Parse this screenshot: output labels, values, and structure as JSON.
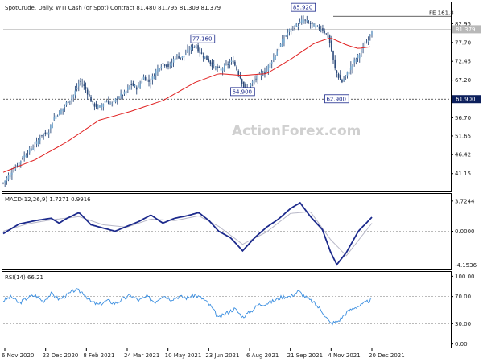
{
  "chart_data": [
    {
      "type": "candlestick",
      "header_text": "SpotCrude, Daily:  WTI Cash (or Spot) Contract  81.480 81.795 81.309 81.379",
      "watermark": "ActionForex.com",
      "x_ticks": [
        "6 Nov 2020",
        "22 Dec 2020",
        "8 Feb 2021",
        "24 Mar 2021",
        "10 May 2021",
        "23 Jun 2021",
        "6 Aug 2021",
        "21 Sep 2021",
        "4 Nov 2021",
        "20 Dec 2021"
      ],
      "y_ticks": [
        "82.95",
        "77.70",
        "72.45",
        "67.20",
        "61.95",
        "56.70",
        "51.65",
        "46.42",
        "41.15"
      ],
      "y_tick_values": [
        82.95,
        77.7,
        72.45,
        67.2,
        61.95,
        56.7,
        51.65,
        46.42,
        41.15
      ],
      "ylim": [
        36.6,
        88.2
      ],
      "close_points": [
        [
          0,
          38.5
        ],
        [
          8,
          41
        ],
        [
          16,
          43
        ],
        [
          24,
          45.5
        ],
        [
          32,
          47.5
        ],
        [
          40,
          49
        ],
        [
          48,
          52
        ],
        [
          56,
          52.5
        ],
        [
          64,
          57
        ],
        [
          72,
          58.5
        ],
        [
          80,
          61
        ],
        [
          88,
          63
        ],
        [
          96,
          67
        ],
        [
          104,
          64.5
        ],
        [
          112,
          60.5
        ],
        [
          120,
          59.5
        ],
        [
          128,
          61.5
        ],
        [
          136,
          60.5
        ],
        [
          144,
          62.5
        ],
        [
          152,
          63.5
        ],
        [
          160,
          66
        ],
        [
          168,
          65
        ],
        [
          176,
          68
        ],
        [
          184,
          66.5
        ],
        [
          192,
          70
        ],
        [
          200,
          72
        ],
        [
          208,
          71
        ],
        [
          216,
          74
        ],
        [
          224,
          73.5
        ],
        [
          232,
          75.5
        ],
        [
          240,
          77
        ],
        [
          248,
          74.5
        ],
        [
          256,
          73
        ],
        [
          264,
          71
        ],
        [
          272,
          70
        ],
        [
          280,
          71.5
        ],
        [
          288,
          72.5
        ],
        [
          296,
          68.5
        ],
        [
          304,
          64
        ],
        [
          312,
          66.5
        ],
        [
          320,
          68.5
        ],
        [
          328,
          69.5
        ],
        [
          336,
          72.5
        ],
        [
          344,
          75.5
        ],
        [
          352,
          79
        ],
        [
          360,
          81.5
        ],
        [
          368,
          82.5
        ],
        [
          376,
          84
        ],
        [
          384,
          83
        ],
        [
          392,
          82
        ],
        [
          400,
          81.5
        ],
        [
          408,
          79
        ],
        [
          416,
          70
        ],
        [
          424,
          66.5
        ],
        [
          432,
          69.5
        ],
        [
          440,
          72.5
        ],
        [
          448,
          75
        ],
        [
          456,
          78
        ],
        [
          462,
          81.379
        ]
      ],
      "ma_points": [
        [
          0,
          41.5
        ],
        [
          40,
          45
        ],
        [
          80,
          50
        ],
        [
          120,
          56
        ],
        [
          160,
          58.5
        ],
        [
          200,
          61.5
        ],
        [
          240,
          66.5
        ],
        [
          270,
          69
        ],
        [
          300,
          68.5
        ],
        [
          330,
          69
        ],
        [
          360,
          73
        ],
        [
          390,
          77.5
        ],
        [
          410,
          79
        ],
        [
          430,
          77
        ],
        [
          445,
          76
        ],
        [
          460,
          76.5
        ]
      ],
      "last_price": {
        "value": 81.379,
        "label": "81.379"
      },
      "levels": [
        {
          "label": "FE 161.8",
          "value": 85.0
        },
        {
          "label": "61.900",
          "value": 61.9,
          "style": "dashed"
        }
      ],
      "annotations": [
        {
          "label": "85.920",
          "x_index": 376,
          "value": 85.92
        },
        {
          "label": "77.160",
          "x_index": 250,
          "value": 77.16
        },
        {
          "label": "64.900",
          "x_index": 300,
          "value": 64.9
        },
        {
          "label": "62.900",
          "x_index": 418,
          "value": 62.9
        }
      ]
    },
    {
      "type": "line",
      "header_text": "MACD(12,26,9) 1.7271 0.9916",
      "series": [
        {
          "name": "MACD",
          "color": "#1c2a8c",
          "points": [
            [
              0,
              -0.3
            ],
            [
              20,
              0.9
            ],
            [
              40,
              1.3
            ],
            [
              60,
              1.6
            ],
            [
              70,
              1.0
            ],
            [
              80,
              1.6
            ],
            [
              95,
              2.3
            ],
            [
              110,
              0.8
            ],
            [
              125,
              0.4
            ],
            [
              140,
              0.0
            ],
            [
              155,
              0.6
            ],
            [
              170,
              1.2
            ],
            [
              185,
              2.0
            ],
            [
              200,
              1.0
            ],
            [
              215,
              1.6
            ],
            [
              230,
              1.9
            ],
            [
              245,
              2.3
            ],
            [
              258,
              1.3
            ],
            [
              270,
              0.0
            ],
            [
              285,
              -0.8
            ],
            [
              300,
              -2.4
            ],
            [
              315,
              -0.8
            ],
            [
              330,
              0.5
            ],
            [
              345,
              1.5
            ],
            [
              360,
              2.8
            ],
            [
              372,
              3.5
            ],
            [
              385,
              1.8
            ],
            [
              400,
              0.2
            ],
            [
              410,
              -2.5
            ],
            [
              418,
              -4.1
            ],
            [
              430,
              -2.6
            ],
            [
              445,
              0.0
            ],
            [
              462,
              1.7271
            ]
          ]
        },
        {
          "name": "Signal",
          "color": "#b8b8c8",
          "points": [
            [
              0,
              0.0
            ],
            [
              30,
              0.9
            ],
            [
              60,
              1.4
            ],
            [
              95,
              1.8
            ],
            [
              125,
              0.8
            ],
            [
              155,
              0.5
            ],
            [
              185,
              1.5
            ],
            [
              215,
              1.3
            ],
            [
              245,
              1.9
            ],
            [
              270,
              0.6
            ],
            [
              300,
              -1.6
            ],
            [
              330,
              -0.1
            ],
            [
              360,
              2.2
            ],
            [
              385,
              2.4
            ],
            [
              410,
              -1.0
            ],
            [
              430,
              -3.0
            ],
            [
              462,
              0.9916
            ]
          ]
        }
      ],
      "y_ticks": [
        "3.7244",
        "0.0000",
        "-4.1536"
      ],
      "y_tick_values": [
        3.7244,
        0.0,
        -4.1536
      ],
      "ylim": [
        -4.6,
        4.3
      ],
      "zero_line": 0.0
    },
    {
      "type": "line",
      "header_text": "RSI(14) 66.21",
      "series": [
        {
          "name": "RSI",
          "color": "#3a8ee0",
          "points": [
            [
              0,
              64
            ],
            [
              10,
              70
            ],
            [
              20,
              60
            ],
            [
              30,
              68
            ],
            [
              40,
              72
            ],
            [
              50,
              63
            ],
            [
              60,
              74
            ],
            [
              70,
              66
            ],
            [
              80,
              72
            ],
            [
              90,
              80
            ],
            [
              100,
              76
            ],
            [
              110,
              62
            ],
            [
              120,
              58
            ],
            [
              130,
              64
            ],
            [
              140,
              60
            ],
            [
              150,
              66
            ],
            [
              160,
              72
            ],
            [
              170,
              64
            ],
            [
              180,
              70
            ],
            [
              190,
              62
            ],
            [
              200,
              72
            ],
            [
              210,
              66
            ],
            [
              220,
              70
            ],
            [
              230,
              68
            ],
            [
              240,
              72
            ],
            [
              250,
              67
            ],
            [
              260,
              56
            ],
            [
              270,
              38
            ],
            [
              280,
              46
            ],
            [
              290,
              52
            ],
            [
              300,
              40
            ],
            [
              310,
              48
            ],
            [
              320,
              58
            ],
            [
              330,
              60
            ],
            [
              340,
              64
            ],
            [
              350,
              70
            ],
            [
              360,
              70
            ],
            [
              370,
              78
            ],
            [
              380,
              68
            ],
            [
              390,
              60
            ],
            [
              400,
              48
            ],
            [
              410,
              30
            ],
            [
              420,
              34
            ],
            [
              430,
              46
            ],
            [
              440,
              54
            ],
            [
              450,
              58
            ],
            [
              462,
              66.21
            ]
          ]
        }
      ],
      "y_ticks": [
        "100.00",
        "70.00",
        "30.00",
        "0.00"
      ],
      "y_tick_values": [
        100,
        70,
        30,
        0
      ],
      "ylim": [
        -4,
        104
      ],
      "levels": [
        70,
        30
      ]
    }
  ]
}
